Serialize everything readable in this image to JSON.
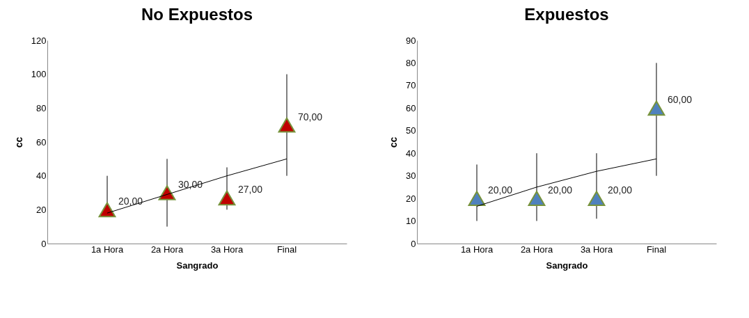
{
  "chart_data": [
    {
      "type": "scatter",
      "title": "No Expuestos",
      "xlabel": "Sangrado",
      "ylabel": "cc",
      "categories": [
        "1a Hora",
        "2a Hora",
        "3a Hora",
        "Final"
      ],
      "ylim": [
        0,
        120
      ],
      "yticks": [
        0,
        20,
        40,
        60,
        80,
        100,
        120
      ],
      "series": [
        {
          "color": "#c00000",
          "marker": "triangle",
          "values": [
            20,
            30,
            27,
            70
          ],
          "errors": [
            [
              16,
              40
            ],
            [
              10,
              50
            ],
            [
              20,
              45
            ],
            [
              40,
              100
            ]
          ],
          "value_labels": [
            "20,00",
            "30,00",
            "27,00",
            "70,00"
          ]
        },
        {
          "type": "line",
          "color": "#000000",
          "values": [
            18,
            29,
            40,
            50
          ]
        }
      ]
    },
    {
      "type": "scatter",
      "title": "Expuestos",
      "xlabel": "Sangrado",
      "ylabel": "cc",
      "categories": [
        "1a Hora",
        "2a Hora",
        "3a Hora",
        "Final"
      ],
      "ylim": [
        0,
        90
      ],
      "yticks": [
        0,
        10,
        20,
        30,
        40,
        50,
        60,
        70,
        80,
        90
      ],
      "series": [
        {
          "color": "#4f81bd",
          "marker": "triangle",
          "values": [
            20,
            20,
            20,
            60
          ],
          "errors": [
            [
              10,
              35
            ],
            [
              10,
              40
            ],
            [
              11,
              40
            ],
            [
              30,
              80
            ]
          ],
          "value_labels": [
            "20,00",
            "20,00",
            "20,00",
            "60,00"
          ]
        },
        {
          "type": "line",
          "color": "#000000",
          "values": [
            16.5,
            25,
            32,
            37.5
          ]
        }
      ]
    }
  ]
}
